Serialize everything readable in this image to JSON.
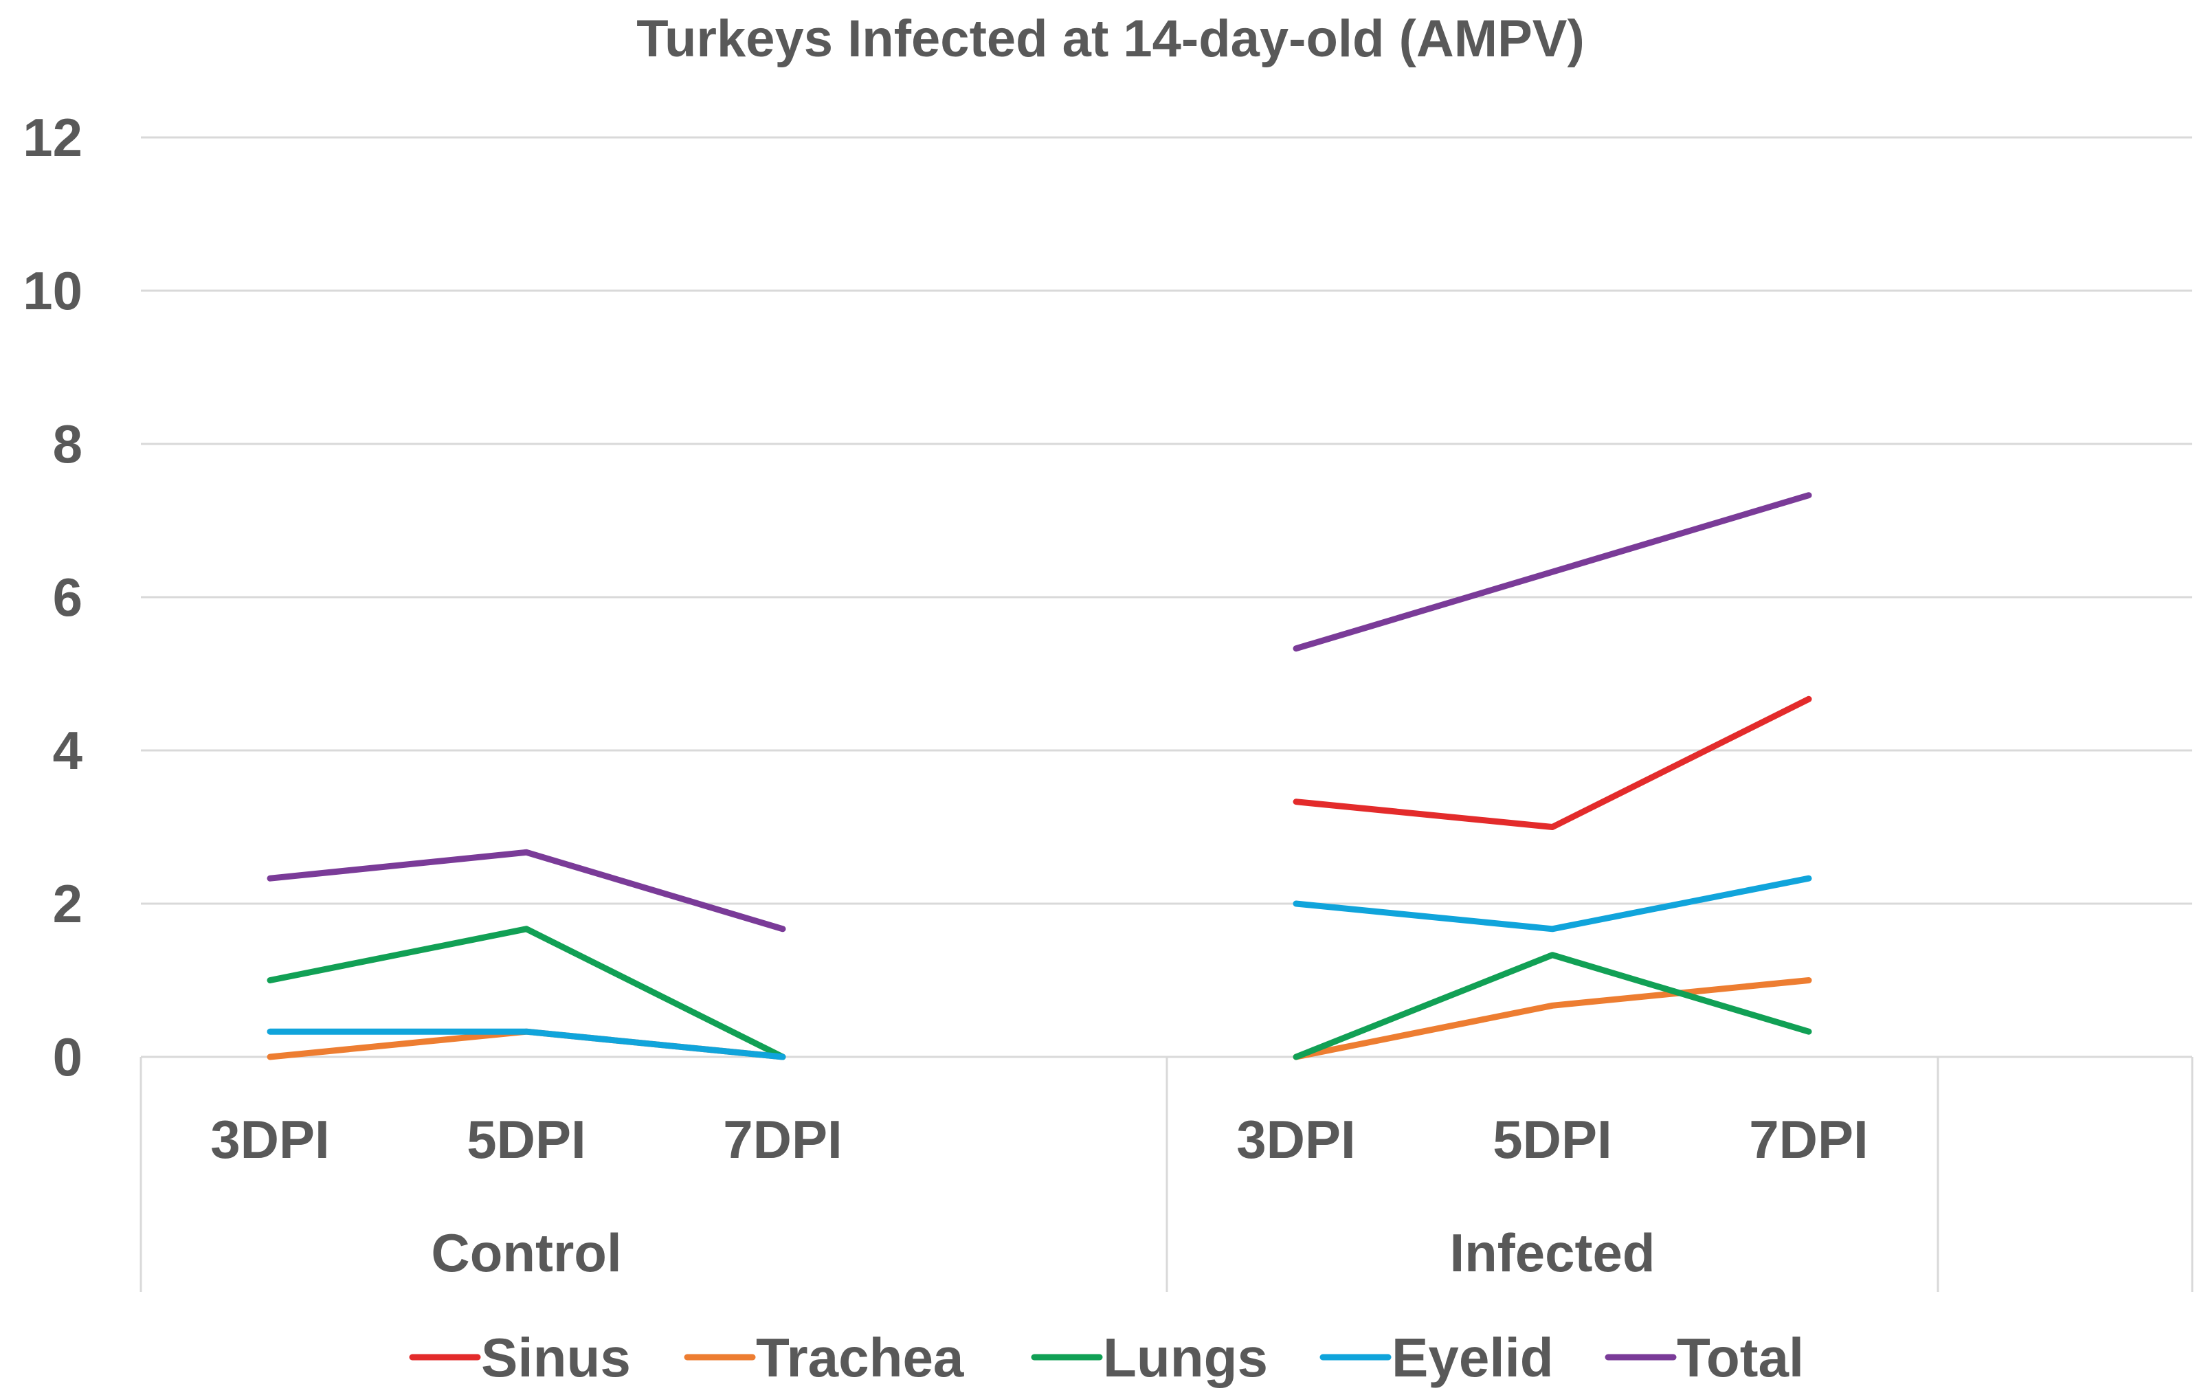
{
  "chart_data": {
    "type": "line",
    "title": "Turkeys Infected at 14-day-old (AMPV)",
    "xlabel": "",
    "ylabel": "",
    "ylim": [
      0,
      12
    ],
    "yticks": [
      "0",
      "2",
      "4",
      "6",
      "8",
      "10",
      "12"
    ],
    "grid": true,
    "legend": "bottom",
    "groups": [
      {
        "name": "Control",
        "categories": [
          "3DPI",
          "5DPI",
          "7DPI"
        ]
      },
      {
        "name": "Infected",
        "categories": [
          "3DPI",
          "5DPI",
          "7DPI"
        ]
      }
    ],
    "series": [
      {
        "name": "Sinus",
        "color": "#e32b2b",
        "values": {
          "Control": [
            null,
            null,
            null
          ],
          "Infected": [
            3.33,
            3.0,
            4.67
          ]
        }
      },
      {
        "name": "Trachea",
        "color": "#ed7d31",
        "values": {
          "Control": [
            0,
            0.33,
            0
          ],
          "Infected": [
            0,
            0.67,
            1.0
          ]
        }
      },
      {
        "name": "Lungs",
        "color": "#11a055",
        "values": {
          "Control": [
            1.0,
            1.67,
            0
          ],
          "Infected": [
            0,
            1.33,
            0.33
          ]
        }
      },
      {
        "name": "Eyelid",
        "color": "#10a4db",
        "values": {
          "Control": [
            0.33,
            0.33,
            0
          ],
          "Infected": [
            2.0,
            1.67,
            2.33
          ]
        }
      },
      {
        "name": "Total",
        "color": "#7a3b98",
        "values": {
          "Control": [
            2.33,
            2.67,
            1.67
          ],
          "Infected": [
            5.33,
            6.33,
            7.33
          ]
        }
      }
    ]
  }
}
